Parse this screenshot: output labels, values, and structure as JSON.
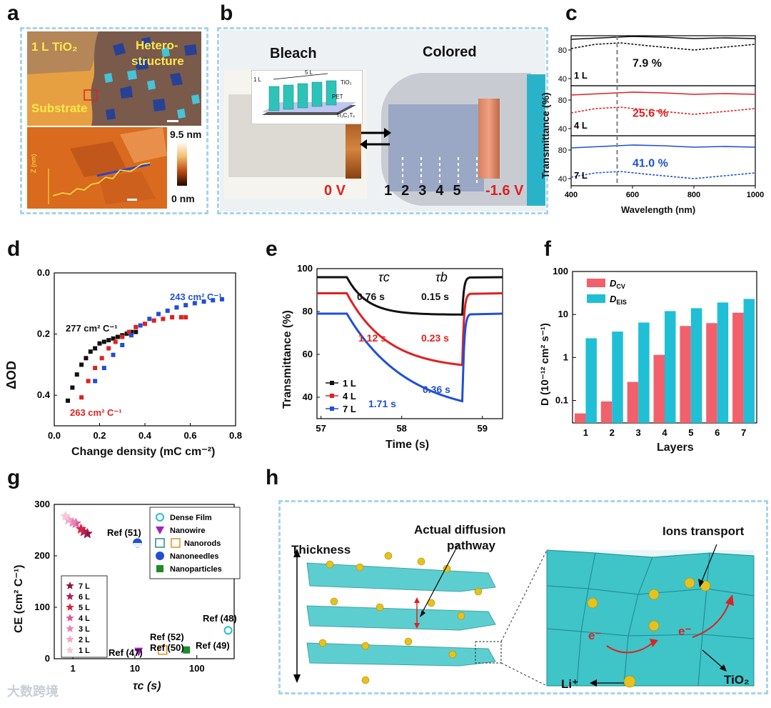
{
  "panels": {
    "a": "a",
    "b": "b",
    "c": "c",
    "d": "d",
    "e": "e",
    "f": "f",
    "g": "g",
    "h": "h"
  },
  "a": {
    "label_1L": "1 L TiO₂",
    "label_hetero": "Hetero-",
    "label_structure": "structure",
    "label_substrate": "Substrate",
    "scale_max": "9.5 nm",
    "scale_min": "0 nm",
    "z_axis": "Z (nm)",
    "z_ticks": [
      "4",
      "2",
      "0"
    ]
  },
  "b": {
    "bleach": "Bleach",
    "colored": "Colored",
    "inset_5L": "5 L",
    "inset_1L": "1 L",
    "inset_tio2": "TiO₂",
    "inset_pet": "PET",
    "inset_ti3c2": "Ti₃C₂Tₓ",
    "v0": "0 V",
    "v16": "-1.6 V",
    "numbers": [
      "1",
      "2",
      "3",
      "4",
      "5"
    ]
  },
  "c": {
    "ylabel": "Transmittance (%)",
    "xlabel": "Wavelength (nm)",
    "xticks": [
      "400",
      "600",
      "800",
      "1000"
    ],
    "rows": [
      {
        "layer": "1 L",
        "value": "7.9 %",
        "color": "#111111",
        "yticks": [
          "80",
          "40"
        ]
      },
      {
        "layer": "4 L",
        "value": "25.6 %",
        "color": "#e02020",
        "yticks": [
          "80",
          "40"
        ]
      },
      {
        "layer": "7 L",
        "value": "41.0 %",
        "color": "#1f4fd6",
        "yticks": [
          "80",
          "40"
        ]
      }
    ]
  },
  "chart_data": [
    {
      "id": "d",
      "type": "scatter",
      "xlabel": "Change density (mC cm⁻²)",
      "ylabel": "ΔOD",
      "xlim": [
        0.0,
        0.8
      ],
      "ylim": [
        0.05,
        0.0
      ],
      "xticks": [
        "0.0",
        "0.2",
        "0.4",
        "0.6",
        "0.8"
      ],
      "yticks": [
        "0.0",
        "0.2",
        "0.4"
      ],
      "annotations": [
        {
          "text": "277 cm² C⁻¹",
          "color": "#111111"
        },
        {
          "text": "263 cm² C⁻¹",
          "color": "#e02020"
        },
        {
          "text": "243 cm² C⁻¹",
          "color": "#1f4fd6"
        }
      ],
      "series": [
        {
          "color": "#111111",
          "x": [
            0.06,
            0.08,
            0.1,
            0.12,
            0.14,
            0.16,
            0.18,
            0.2,
            0.22,
            0.24,
            0.26,
            0.28,
            0.3,
            0.32,
            0.34,
            0.36
          ],
          "y": [
            0.14,
            0.18,
            0.22,
            0.25,
            0.27,
            0.29,
            0.3,
            0.315,
            0.32,
            0.325,
            0.33,
            0.335,
            0.34,
            0.345,
            0.35,
            0.35
          ]
        },
        {
          "color": "#e02020",
          "x": [
            0.12,
            0.15,
            0.18,
            0.21,
            0.24,
            0.27,
            0.3,
            0.33,
            0.36,
            0.4,
            0.44,
            0.48,
            0.52,
            0.56,
            0.58
          ],
          "y": [
            0.15,
            0.2,
            0.24,
            0.27,
            0.3,
            0.32,
            0.335,
            0.35,
            0.365,
            0.375,
            0.385,
            0.39,
            0.395,
            0.395,
            0.395
          ]
        },
        {
          "color": "#1f4fd6",
          "x": [
            0.18,
            0.22,
            0.26,
            0.3,
            0.34,
            0.38,
            0.42,
            0.46,
            0.5,
            0.54,
            0.58,
            0.62,
            0.66,
            0.7,
            0.74
          ],
          "y": [
            0.2,
            0.24,
            0.28,
            0.31,
            0.34,
            0.37,
            0.39,
            0.405,
            0.415,
            0.425,
            0.432,
            0.438,
            0.443,
            0.447,
            0.45
          ]
        }
      ]
    },
    {
      "id": "e",
      "type": "line",
      "xlabel": "Time (s)",
      "ylabel": "Transmittance (%)",
      "xlim": [
        56.95,
        59.25
      ],
      "ylim": [
        30,
        100
      ],
      "xticks": [
        "57",
        "58",
        "59"
      ],
      "yticks": [
        "40",
        "60",
        "80",
        "100"
      ],
      "tau_c": "τc",
      "tau_b": "τb",
      "annotations": [
        {
          "text": "0.76 s",
          "color": "#111111"
        },
        {
          "text": "0.15 s",
          "color": "#111111"
        },
        {
          "text": "1.12 s",
          "color": "#e02020"
        },
        {
          "text": "0.23 s",
          "color": "#e02020"
        },
        {
          "text": "0.36 s",
          "color": "#1f4fd6"
        },
        {
          "text": "1.71 s",
          "color": "#1f4fd6"
        }
      ],
      "series": [
        {
          "name": "1 L",
          "color": "#111111",
          "high": 96,
          "low": 78.5
        },
        {
          "name": "4 L",
          "color": "#e02020",
          "high": 88.5,
          "low": 53
        },
        {
          "name": "7 L",
          "color": "#1f4fd6",
          "high": 79,
          "low": 31
        }
      ]
    },
    {
      "id": "f",
      "type": "bar",
      "xlabel": "Layers",
      "ylabel": "D (10⁻¹² cm² s⁻¹)",
      "scale": "log",
      "ylim": [
        0.03,
        100
      ],
      "categories": [
        "1",
        "2",
        "3",
        "4",
        "5",
        "6",
        "7"
      ],
      "yticks": [
        "0.1",
        "1",
        "10",
        "100"
      ],
      "series": [
        {
          "name": "D_CV",
          "color": "#f2606b",
          "values": [
            0.05,
            0.095,
            0.27,
            1.15,
            5.4,
            6.3,
            11.0
          ]
        },
        {
          "name": "D_EIS",
          "color": "#1fbfd6",
          "values": [
            2.8,
            4.0,
            6.5,
            12.0,
            14.0,
            19.0,
            23.0
          ]
        }
      ],
      "legend": [
        {
          "main": "D",
          "sub": "CV"
        },
        {
          "main": "D",
          "sub": "EIS"
        }
      ]
    },
    {
      "id": "g",
      "type": "scatter",
      "xlabel": "τc (s)",
      "ylabel": "CE (cm² C⁻¹)",
      "scale": "log-x",
      "xlim": [
        0.5,
        400
      ],
      "ylim": [
        0,
        300
      ],
      "xticks": [
        "1",
        "10",
        "100"
      ],
      "yticks": [
        "0",
        "100",
        "200",
        "300"
      ],
      "this_work": [
        {
          "name": "7 L",
          "x": 1.71,
          "y": 243,
          "color": "#8b1a3f"
        },
        {
          "name": "6 L",
          "x": 1.5,
          "y": 247,
          "color": "#b31e5a"
        },
        {
          "name": "5 L",
          "x": 1.35,
          "y": 252,
          "color": "#d7263d"
        },
        {
          "name": "4 L",
          "x": 1.12,
          "y": 263,
          "color": "#e05aa0"
        },
        {
          "name": "3 L",
          "x": 1.0,
          "y": 265,
          "color": "#ec80b8"
        },
        {
          "name": "2 L",
          "x": 0.85,
          "y": 270,
          "color": "#f4a6c8"
        },
        {
          "name": "1 L",
          "x": 0.76,
          "y": 277,
          "color": "#f8c6d8"
        }
      ],
      "refs": [
        {
          "label": "Ref (51)",
          "x": 11,
          "y": 225,
          "kind": "Nanoneedles"
        },
        {
          "label": "Ref (48)",
          "x": 320,
          "y": 55,
          "kind": "Dense Film"
        },
        {
          "label": "Ref (47)",
          "x": 11.5,
          "y": 13,
          "kind": "Nanowire"
        },
        {
          "label": "Ref (52)",
          "x": 28,
          "y": 17,
          "kind": "Nanorods"
        },
        {
          "label": "Ref (50)",
          "x": 28,
          "y": 13,
          "kind": "Nanorods"
        },
        {
          "label": "Ref (49)",
          "x": 68,
          "y": 17,
          "kind": "Nanoparticles"
        }
      ],
      "legend": [
        "Dense Film",
        "Nanowire",
        "Nanorods",
        "Nanoneedles",
        "Nanoparticles"
      ]
    }
  ],
  "h": {
    "thickness": "Thickness",
    "diffusion_l1": "Actual diffusion",
    "diffusion_l2": "pathway",
    "ions": "Ions transport",
    "li": "Li⁺",
    "tio2": "TiO₂",
    "e1": "e⁻",
    "e2": "e⁻"
  },
  "watermark": "大数跨境"
}
